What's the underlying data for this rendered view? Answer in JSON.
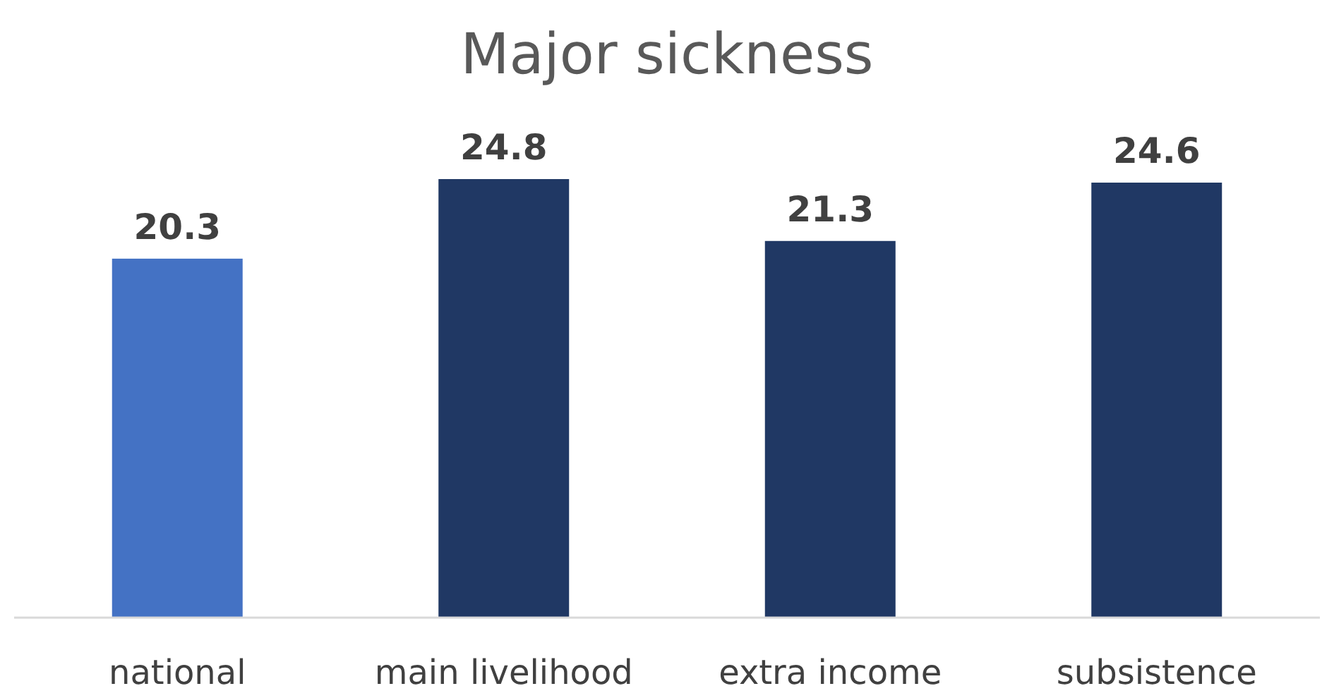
{
  "chart_data": {
    "type": "bar",
    "title": "Major sickness",
    "categories": [
      "national",
      "main livelihood",
      "extra income",
      "subsistence"
    ],
    "values": [
      20.3,
      24.8,
      21.3,
      24.6
    ],
    "colors": [
      "#4472c4",
      "#203864",
      "#203864",
      "#203864"
    ],
    "data_labels": true
  }
}
